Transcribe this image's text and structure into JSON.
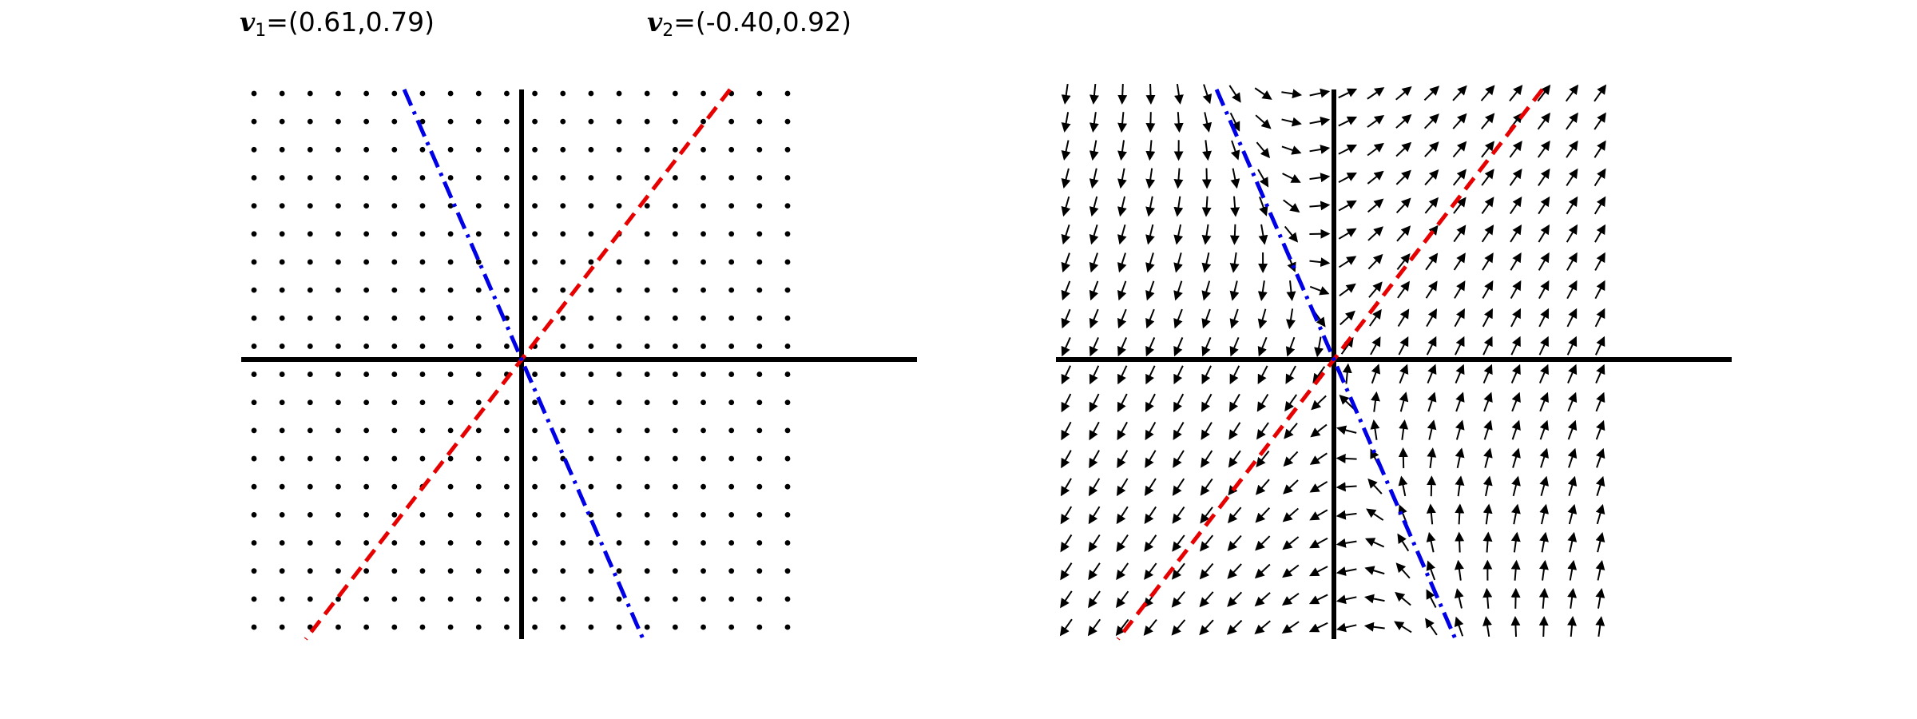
{
  "labels": {
    "v1": {
      "symbol": "v",
      "sub": "1",
      "text": "=(0.61,0.79)",
      "vector": [
        0.61,
        0.79
      ]
    },
    "v2": {
      "symbol": "v",
      "sub": "2",
      "text": "=(-0.40,0.92)",
      "vector": [
        -0.4,
        0.92
      ]
    }
  },
  "colors": {
    "axes": "#000000",
    "dots": "#000000",
    "arrows": "#000000",
    "v1_line": "#e60000",
    "v2_line": "#0000e6"
  },
  "panels": [
    {
      "id": "left",
      "content": "dot grid (zero field)",
      "grid": {
        "cols": 20,
        "rows": 20
      }
    },
    {
      "id": "right",
      "content": "vector field (quiver)",
      "grid": {
        "cols": 20,
        "rows": 20
      }
    }
  ],
  "line_styles": {
    "v1": "dashed",
    "v2": "dash-dot"
  }
}
